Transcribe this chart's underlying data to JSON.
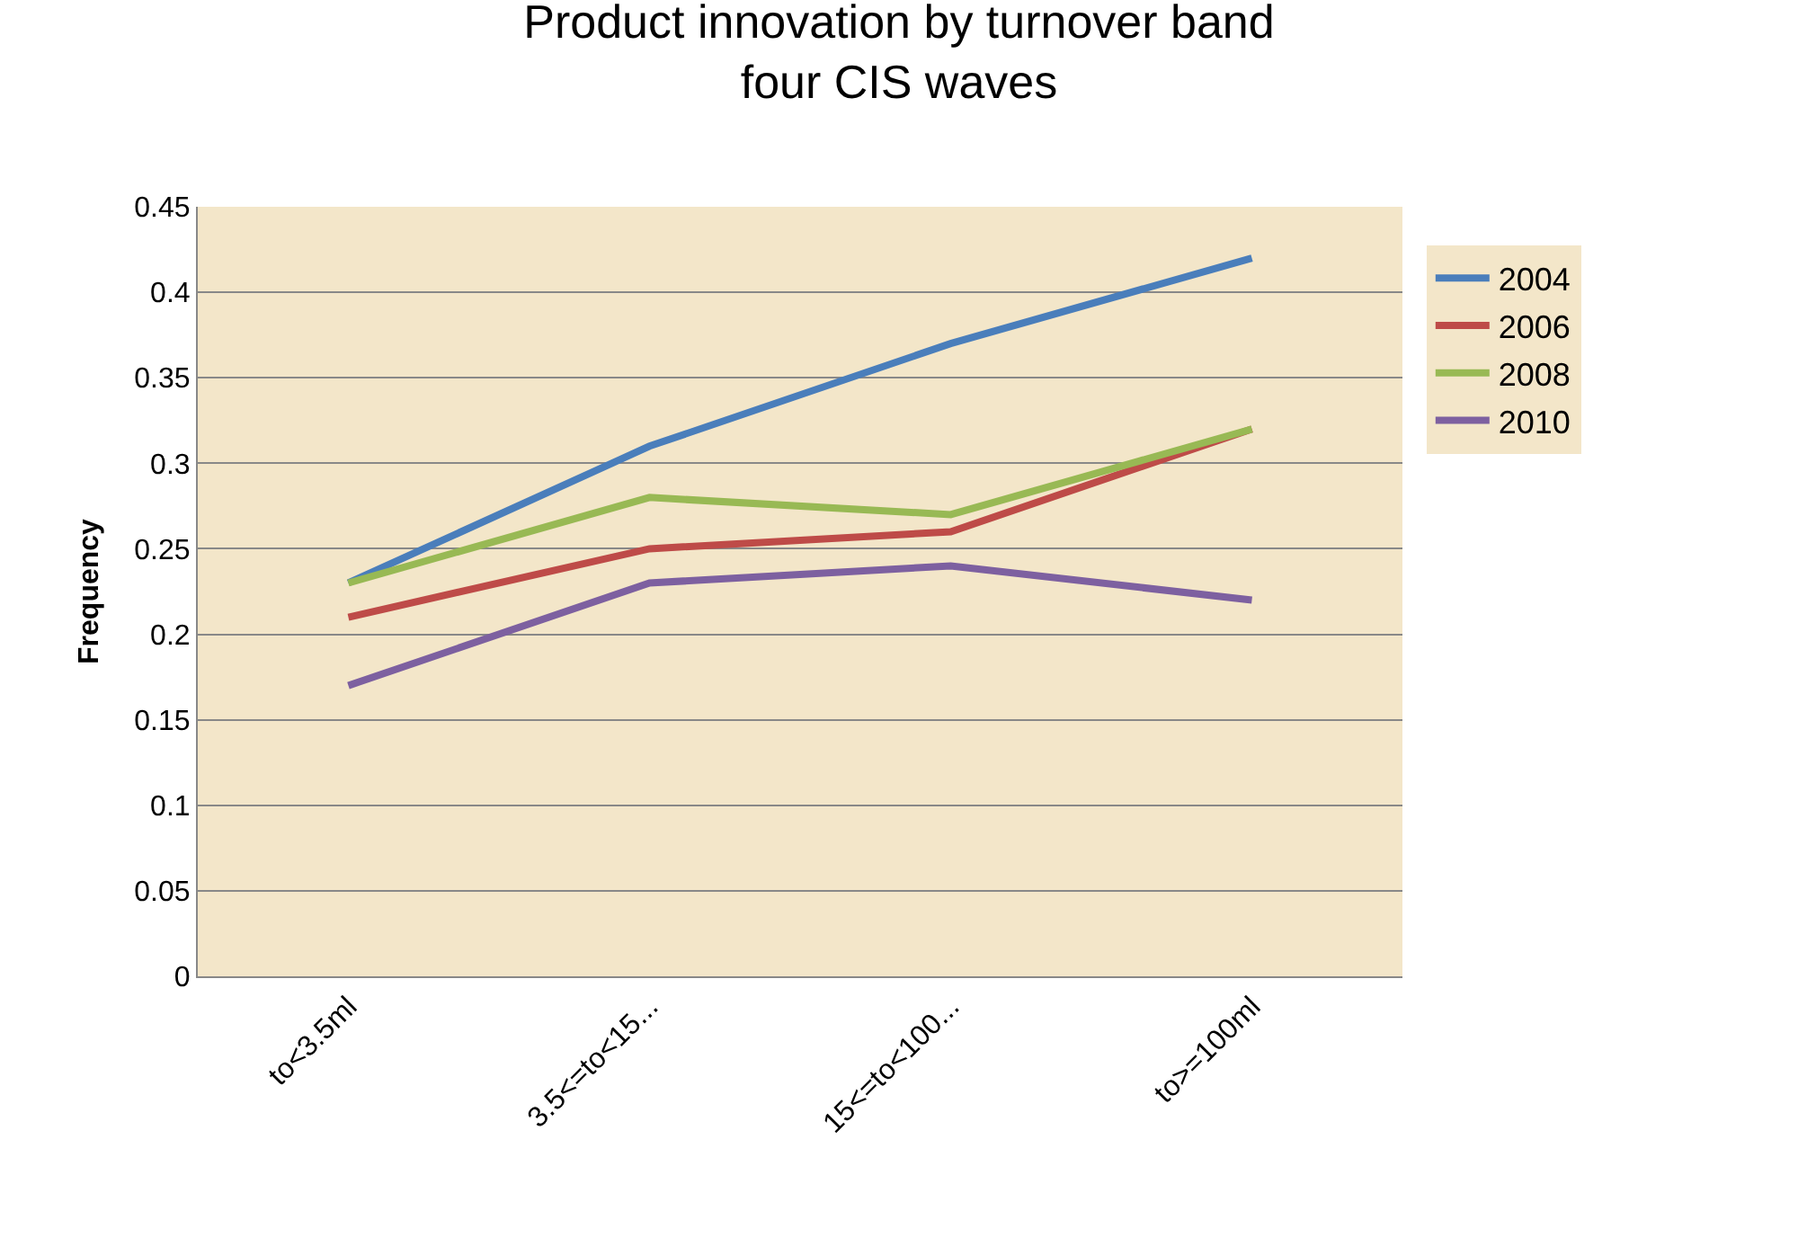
{
  "chart_data": {
    "type": "line",
    "title": "Product innovation by turnover band\nfour CIS waves",
    "ylabel": "Frequency",
    "categories": [
      "to<3.5ml",
      "3.5<=to<15...",
      "15<=to<100...",
      "to>=100ml"
    ],
    "series": [
      {
        "name": "2004",
        "color": "#4a7ebb",
        "values": [
          0.23,
          0.31,
          0.37,
          0.42
        ]
      },
      {
        "name": "2006",
        "color": "#be4b48",
        "values": [
          0.21,
          0.25,
          0.26,
          0.32
        ]
      },
      {
        "name": "2008",
        "color": "#98b954",
        "values": [
          0.23,
          0.28,
          0.27,
          0.32
        ]
      },
      {
        "name": "2010",
        "color": "#7d60a0",
        "values": [
          0.17,
          0.23,
          0.24,
          0.22
        ]
      }
    ],
    "ylim": [
      0,
      0.45
    ],
    "yticks": [
      0,
      0.05,
      0.1,
      0.15,
      0.2,
      0.25,
      0.3,
      0.35,
      0.4,
      0.45
    ],
    "grid": "y",
    "legend": "right",
    "marker": "none",
    "line_style": "solid"
  }
}
